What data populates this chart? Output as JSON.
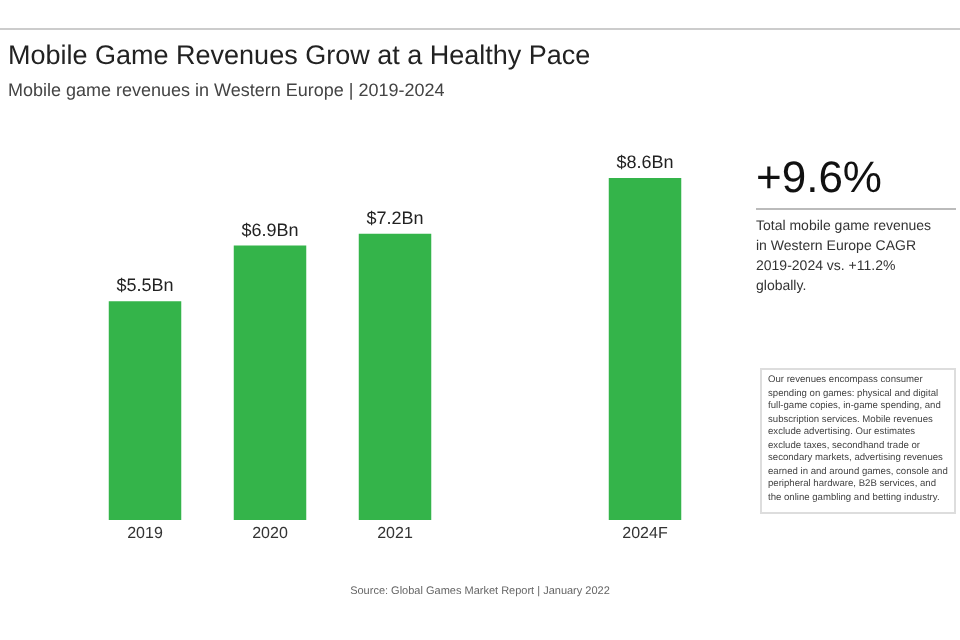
{
  "chart_data": {
    "type": "bar",
    "title": "Mobile Game Revenues Grow at a Healthy Pace",
    "subtitle": "Mobile game revenues in Western Europe | 2019-2024",
    "categories": [
      "2019",
      "2020",
      "2021",
      null,
      "2024F"
    ],
    "values": [
      5.5,
      6.9,
      7.2,
      null,
      8.6
    ],
    "value_labels": [
      "$5.5Bn",
      "$6.9Bn",
      "$7.2Bn",
      null,
      "$8.6Bn"
    ],
    "color": "#34b44a",
    "annotations": [
      "+9.6%",
      "Total mobile game revenues in Western Europe CAGR 2019-2024 vs. +11.2% globally.",
      "Our revenues encompass consumer spending on games: physical and digital full-game copies, in-game spending, and subscription services. Mobile revenues exclude advertising. Our estimates exclude taxes, secondhand trade or secondary markets, advertising revenues earned in and around games, console and peripheral hardware, B2B services, and the online gambling and betting industry.",
      "Source: Global Games Market Report | January 2022"
    ],
    "grid": false,
    "legend": false
  }
}
